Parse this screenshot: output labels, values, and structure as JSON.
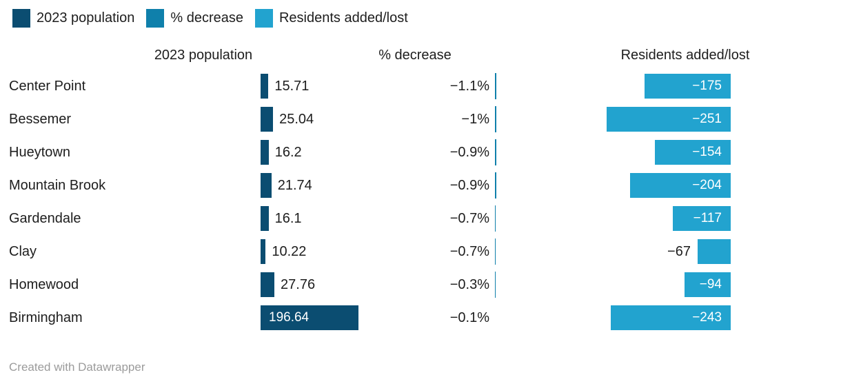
{
  "legend": {
    "items": [
      {
        "label": "2023 population",
        "color": "#0b4d71"
      },
      {
        "label": "% decrease",
        "color": "#0f80ab"
      },
      {
        "label": "Residents added/lost",
        "color": "#22a3cf"
      }
    ]
  },
  "footer": {
    "text": "Created with Datawrapper"
  },
  "chart_data": {
    "type": "bar",
    "orientation": "horizontal",
    "legend_position": "top",
    "grid": false,
    "categories": [
      "Center Point",
      "Bessemer",
      "Hueytown",
      "Mountain Brook",
      "Gardendale",
      "Clay",
      "Homewood",
      "Birmingham"
    ],
    "series": [
      {
        "name": "2023 population",
        "color": "#0b4d71",
        "values": [
          15.71,
          25.04,
          16.2,
          21.74,
          16.1,
          10.22,
          27.76,
          196.64
        ],
        "labels": [
          "15.71",
          "25.04",
          "16.2",
          "21.74",
          "16.1",
          "10.22",
          "27.76",
          "196.64"
        ]
      },
      {
        "name": "% decrease",
        "color": "#0f80ab",
        "values": [
          -1.1,
          -1,
          -0.9,
          -0.9,
          -0.7,
          -0.7,
          -0.3,
          -0.1
        ],
        "labels": [
          "−1.1%",
          "−1%",
          "−0.9%",
          "−0.9%",
          "−0.7%",
          "−0.7%",
          "−0.3%",
          "−0.1%"
        ]
      },
      {
        "name": "Residents added/lost",
        "color": "#22a3cf",
        "values": [
          -175,
          -251,
          -154,
          -204,
          -117,
          -67,
          -94,
          -243
        ],
        "labels": [
          "−175",
          "−251",
          "−154",
          "−204",
          "−117",
          "−67",
          "−94",
          "−243"
        ]
      }
    ]
  }
}
